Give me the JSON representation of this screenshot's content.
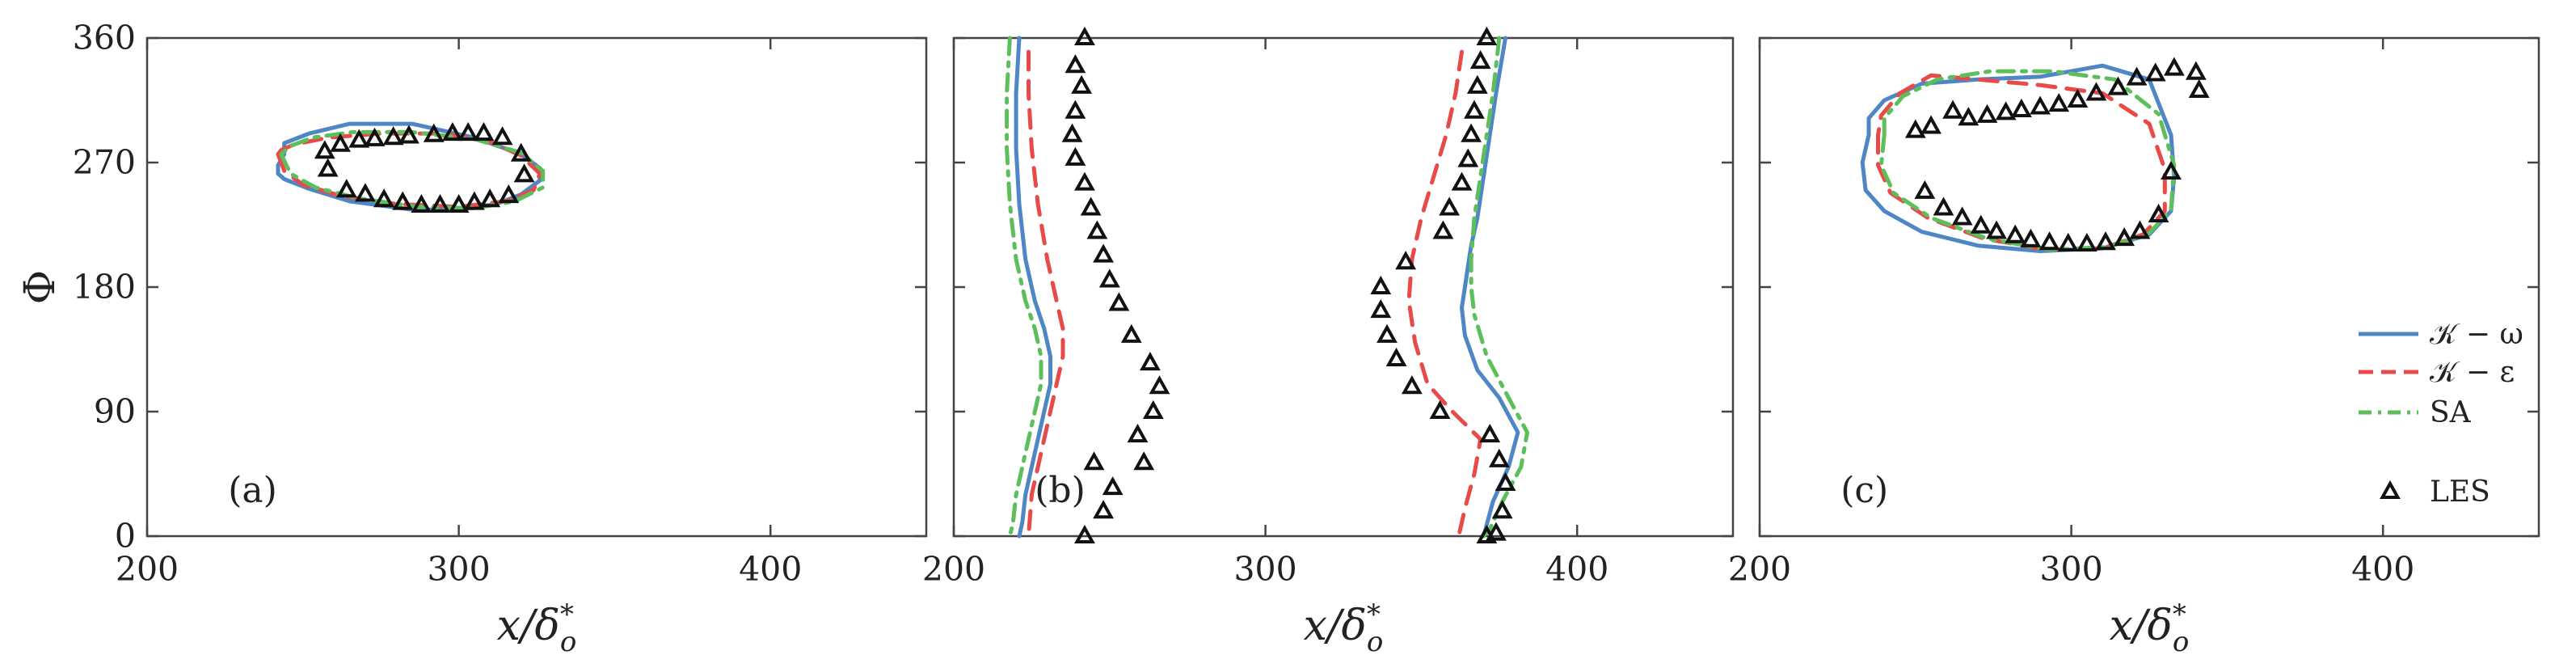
{
  "chart_data": [
    {
      "type": "line",
      "panel_label": "(a)",
      "xlabel": "x/δ*o",
      "ylabel": "Φ",
      "xlim": [
        200,
        450
      ],
      "ylim": [
        0,
        360
      ],
      "xticks": [
        "200",
        "300",
        "400"
      ],
      "yticks": [
        "0",
        "90",
        "180",
        "270",
        "360"
      ],
      "grid": false,
      "series": [
        {
          "key": "kw",
          "x": [
            244,
            242,
            242,
            244,
            252,
            265,
            285,
            300,
            312,
            320,
            326,
            326,
            320,
            305,
            285,
            265,
            252,
            244
          ],
          "y": [
            276,
            268,
            262,
            258,
            251,
            242,
            236,
            236,
            240,
            247,
            257,
            266,
            276,
            288,
            298,
            298,
            291,
            284
          ]
        },
        {
          "key": "ke",
          "x": [
            242,
            244,
            250,
            262,
            280,
            300,
            315,
            324,
            326,
            320,
            310,
            295,
            275,
            258,
            247,
            243
          ],
          "y": [
            276,
            264,
            254,
            246,
            240,
            238,
            242,
            250,
            262,
            275,
            285,
            291,
            291,
            288,
            283,
            279
          ]
        },
        {
          "key": "sa",
          "x": [
            243,
            246,
            254,
            268,
            287,
            305,
            318,
            327,
            327,
            320,
            305,
            285,
            266,
            253,
            246
          ],
          "y": [
            276,
            262,
            252,
            244,
            238,
            237,
            242,
            252,
            264,
            277,
            287,
            292,
            292,
            288,
            282
          ]
        },
        {
          "key": "les",
          "x": [
            257,
            262,
            268,
            273,
            279,
            284,
            292,
            298,
            303,
            308,
            314,
            320,
            258,
            264,
            270,
            276,
            282,
            288,
            294,
            300,
            305,
            310,
            316,
            321
          ],
          "y": [
            278,
            283,
            286,
            287,
            288,
            289,
            290,
            291,
            291,
            291,
            288,
            276,
            265,
            250,
            247,
            243,
            241,
            239,
            239,
            239,
            241,
            243,
            246,
            261
          ]
        }
      ]
    },
    {
      "type": "line",
      "panel_label": "(b)",
      "xlabel": "x/δ*o",
      "ylabel": "",
      "xlim": [
        200,
        450
      ],
      "ylim": [
        0,
        360
      ],
      "xticks": [
        "200",
        "300",
        "400"
      ],
      "yticks": [
        "0",
        "90",
        "180",
        "270",
        "360"
      ],
      "grid": false,
      "series": [
        {
          "key": "kw",
          "x": [
            377,
            374,
            372,
            370,
            368,
            366,
            365,
            364,
            363,
            364,
            368,
            375,
            381,
            378,
            373,
            370
          ],
          "y": [
            360,
            320,
            290,
            260,
            230,
            210,
            195,
            180,
            165,
            145,
            120,
            100,
            75,
            50,
            25,
            0
          ]
        },
        {
          "key": "ke",
          "x": [
            363,
            361,
            358,
            354,
            350,
            347,
            346,
            348,
            352,
            360,
            369,
            367,
            364,
            362
          ],
          "y": [
            350,
            320,
            290,
            260,
            230,
            200,
            170,
            140,
            110,
            90,
            70,
            45,
            20,
            0
          ]
        },
        {
          "key": "sa",
          "x": [
            375,
            373,
            371,
            369,
            367,
            366,
            366,
            367,
            371,
            378,
            384,
            382,
            376,
            372,
            370
          ],
          "y": [
            360,
            320,
            290,
            260,
            230,
            200,
            180,
            160,
            130,
            100,
            75,
            50,
            25,
            5,
            0
          ],
          "dx": [
            0,
            0,
            0,
            0,
            0,
            0,
            0,
            0,
            0,
            0,
            0,
            0,
            0,
            0,
            0
          ]
        },
        {
          "key": "kw_left",
          "x": [
            221,
            220,
            220,
            221,
            223,
            226,
            229,
            231,
            231,
            229,
            227,
            225,
            223,
            222,
            221
          ],
          "y": [
            360,
            320,
            280,
            240,
            200,
            170,
            150,
            130,
            110,
            90,
            70,
            50,
            30,
            10,
            0
          ]
        },
        {
          "key": "ke_left",
          "x": [
            224,
            224,
            225,
            227,
            230,
            233,
            235,
            235,
            233,
            231,
            229,
            227,
            225,
            224
          ],
          "y": [
            350,
            320,
            280,
            240,
            200,
            170,
            150,
            130,
            110,
            90,
            70,
            50,
            30,
            0
          ]
        },
        {
          "key": "sa_left",
          "x": [
            218,
            217,
            217,
            218,
            220,
            223,
            226,
            228,
            228,
            226,
            224,
            222,
            220,
            219,
            218
          ],
          "y": [
            360,
            320,
            280,
            240,
            200,
            170,
            150,
            130,
            110,
            90,
            70,
            50,
            30,
            10,
            0
          ]
        },
        {
          "key": "les",
          "x": [
            242,
            239,
            241,
            239,
            238,
            239,
            242,
            244,
            246,
            248,
            250,
            253,
            257,
            263,
            266,
            264,
            259,
            261,
            245,
            251,
            248,
            242,
            371,
            369,
            368,
            367,
            366,
            365,
            363,
            359,
            357,
            345,
            337,
            337,
            339,
            342,
            347,
            356,
            372,
            375,
            377,
            376,
            374,
            371
          ],
          "y": [
            360,
            340,
            325,
            307,
            290,
            273,
            255,
            237,
            220,
            203,
            185,
            168,
            145,
            125,
            108,
            90,
            73,
            53,
            53,
            35,
            18,
            0,
            360,
            343,
            325,
            307,
            290,
            272,
            255,
            237,
            220,
            198,
            180,
            163,
            145,
            128,
            108,
            90,
            73,
            55,
            38,
            18,
            2,
            0
          ]
        }
      ]
    },
    {
      "type": "line",
      "panel_label": "(c)",
      "xlabel": "x/δ*o",
      "ylabel": "",
      "xlim": [
        200,
        450
      ],
      "ylim": [
        0,
        360
      ],
      "xticks": [
        "200",
        "300",
        "400"
      ],
      "yticks": [
        "0",
        "90",
        "180",
        "270",
        "360"
      ],
      "grid": false,
      "series": [
        {
          "key": "kw",
          "x": [
            235,
            233,
            234,
            240,
            252,
            270,
            290,
            310,
            325,
            332,
            333,
            332,
            325,
            310,
            290,
            270,
            252,
            240,
            235
          ],
          "y": [
            290,
            270,
            250,
            235,
            220,
            210,
            206,
            208,
            218,
            235,
            260,
            290,
            330,
            340,
            332,
            330,
            327,
            315,
            302
          ]
        },
        {
          "key": "ke",
          "x": [
            238,
            238,
            242,
            254,
            272,
            292,
            310,
            323,
            330,
            330,
            325,
            310,
            290,
            270,
            255,
            245,
            239
          ],
          "y": [
            290,
            268,
            248,
            230,
            215,
            207,
            208,
            218,
            235,
            265,
            298,
            320,
            326,
            330,
            333,
            320,
            304
          ]
        },
        {
          "key": "sa",
          "x": [
            240,
            239,
            243,
            255,
            273,
            293,
            312,
            325,
            332,
            333,
            328,
            314,
            294,
            274,
            257,
            246,
            240
          ],
          "y": [
            290,
            268,
            248,
            230,
            215,
            207,
            209,
            219,
            236,
            268,
            305,
            330,
            336,
            336,
            330,
            318,
            302
          ]
        },
        {
          "key": "les",
          "x": [
            250,
            255,
            262,
            267,
            273,
            279,
            284,
            290,
            296,
            302,
            308,
            315,
            321,
            327,
            333,
            340,
            341,
            332,
            253,
            259,
            265,
            271,
            276,
            282,
            287,
            293,
            299,
            305,
            311,
            317,
            322,
            328
          ],
          "y": [
            293,
            296,
            307,
            302,
            304,
            306,
            308,
            310,
            312,
            315,
            320,
            324,
            331,
            334,
            338,
            335,
            322,
            263,
            249,
            237,
            230,
            224,
            220,
            217,
            214,
            212,
            211,
            211,
            212,
            215,
            220,
            232
          ]
        }
      ]
    }
  ],
  "legend": {
    "position": "right-bottom of panel (c)",
    "items": [
      {
        "key": "kw",
        "label": "𝒦 − ω",
        "color": "#4f86c6",
        "dash": "solid"
      },
      {
        "key": "ke",
        "label": "𝒦 − ε",
        "color": "#e84a4a",
        "dash": "dashed"
      },
      {
        "key": "sa",
        "label": "SA",
        "color": "#5cbf5c",
        "dash": "dashdot"
      },
      {
        "key": "les",
        "label": "LES",
        "color": "#111111",
        "marker": "triangle"
      }
    ]
  },
  "colors": {
    "kw": "#4f86c6",
    "ke": "#e84a4a",
    "sa": "#5cbf5c",
    "les": "#111111",
    "axis": "#444444"
  }
}
